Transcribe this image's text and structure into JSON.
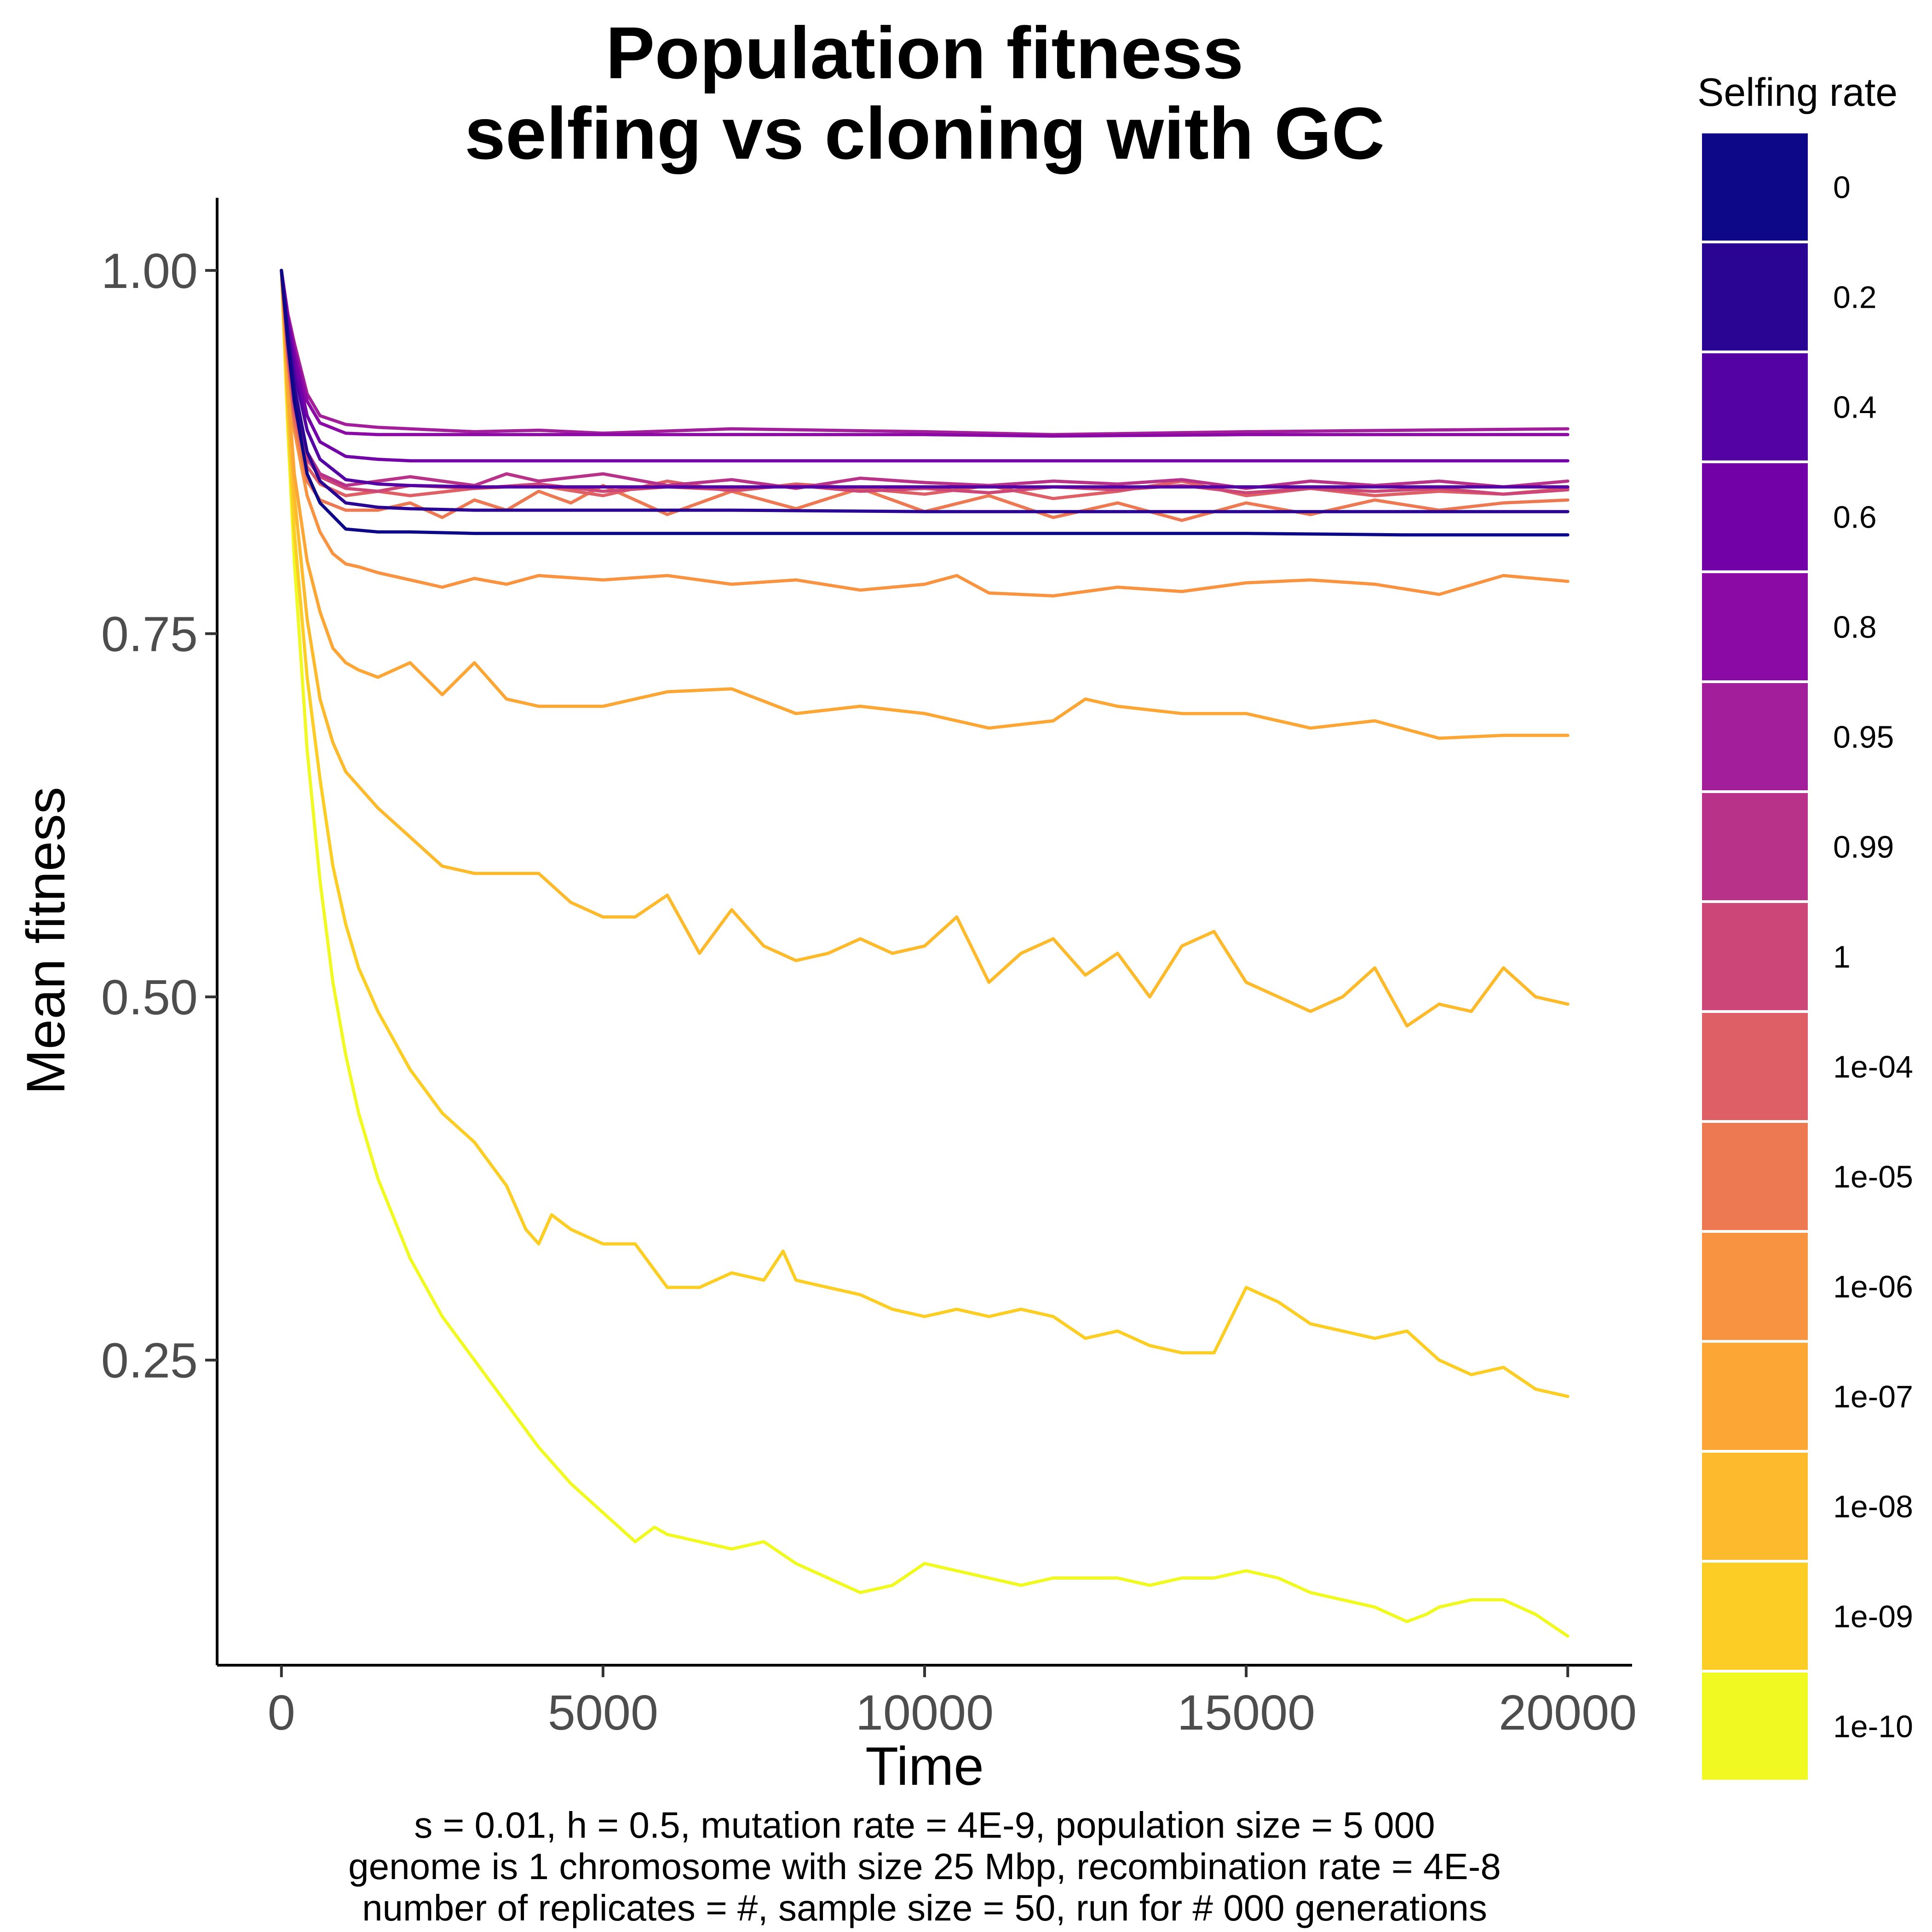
{
  "chart_data": {
    "type": "line",
    "title": [
      "Population fitness",
      "selfing vs cloning with GC"
    ],
    "xlabel": "Time",
    "ylabel": "Mean fitness",
    "xlim": [
      -1000,
      21000
    ],
    "ylim": [
      0.04,
      1.05
    ],
    "xticks": [
      0,
      5000,
      10000,
      15000,
      20000
    ],
    "xtick_labels": [
      "0",
      "5000",
      "10000",
      "15000",
      "20000"
    ],
    "yticks": [
      0.25,
      0.5,
      0.75,
      1.0
    ],
    "ytick_labels": [
      "0.25",
      "0.50",
      "0.75",
      "1.00"
    ],
    "grid": false,
    "legend": {
      "title": "Selfing rate",
      "position": "right"
    },
    "caption": [
      "s = 0.01, h = 0.5, mutation rate = 4E-9, population size = 5 000",
      "genome is 1 chromosome with size 25 Mbp, recombination rate = 4E-8",
      "number of replicates = #, sample size = 50, run for # 000 generations"
    ],
    "series": [
      {
        "name": "0",
        "color": "#0D0887",
        "x": [
          0,
          100,
          200,
          400,
          600,
          1000,
          1500,
          2000,
          3000,
          4000,
          5000,
          7000,
          10000,
          12000,
          15000,
          17500,
          20000
        ],
        "y": [
          1.0,
          0.95,
          0.91,
          0.86,
          0.84,
          0.822,
          0.82,
          0.82,
          0.819,
          0.819,
          0.819,
          0.819,
          0.819,
          0.819,
          0.819,
          0.818,
          0.818
        ]
      },
      {
        "name": "0.2",
        "color": "#2A0593",
        "x": [
          0,
          100,
          200,
          400,
          600,
          1000,
          1500,
          2000,
          3000,
          4000,
          5000,
          7000,
          10000,
          12000,
          15000,
          17500,
          20000
        ],
        "y": [
          1.0,
          0.955,
          0.92,
          0.875,
          0.855,
          0.84,
          0.837,
          0.836,
          0.835,
          0.835,
          0.835,
          0.835,
          0.834,
          0.834,
          0.834,
          0.834,
          0.834
        ]
      },
      {
        "name": "0.4",
        "color": "#5402A3",
        "x": [
          0,
          100,
          200,
          400,
          600,
          1000,
          1500,
          2000,
          3000,
          4000,
          5000,
          7000,
          10000,
          12000,
          15000,
          17500,
          20000
        ],
        "y": [
          1.0,
          0.96,
          0.93,
          0.89,
          0.87,
          0.856,
          0.853,
          0.852,
          0.851,
          0.851,
          0.851,
          0.851,
          0.851,
          0.851,
          0.851,
          0.851,
          0.851
        ]
      },
      {
        "name": "0.6",
        "color": "#7301A8",
        "x": [
          0,
          100,
          200,
          400,
          600,
          1000,
          1500,
          2000,
          3000,
          4000,
          5000,
          7000,
          10000,
          12000,
          15000,
          17500,
          20000
        ],
        "y": [
          1.0,
          0.965,
          0.94,
          0.9,
          0.882,
          0.872,
          0.87,
          0.869,
          0.869,
          0.869,
          0.869,
          0.869,
          0.869,
          0.869,
          0.869,
          0.869,
          0.869
        ]
      },
      {
        "name": "0.8",
        "color": "#8B0AA5",
        "x": [
          0,
          100,
          200,
          400,
          600,
          1000,
          1500,
          2000,
          3000,
          4000,
          5000,
          7000,
          10000,
          12000,
          15000,
          17500,
          20000
        ],
        "y": [
          1.0,
          0.968,
          0.945,
          0.91,
          0.895,
          0.888,
          0.887,
          0.887,
          0.887,
          0.887,
          0.887,
          0.887,
          0.887,
          0.886,
          0.887,
          0.887,
          0.887
        ]
      },
      {
        "name": "0.95",
        "color": "#A31E9A",
        "x": [
          0,
          100,
          200,
          400,
          600,
          1000,
          1500,
          2000,
          3000,
          4000,
          5000,
          7000,
          10000,
          12000,
          15000,
          17500,
          20000
        ],
        "y": [
          1.0,
          0.97,
          0.95,
          0.915,
          0.9,
          0.894,
          0.892,
          0.891,
          0.889,
          0.89,
          0.888,
          0.891,
          0.889,
          0.887,
          0.889,
          0.89,
          0.891
        ]
      },
      {
        "name": "0.99",
        "color": "#B83289",
        "x": [
          0,
          100,
          200,
          400,
          600,
          1000,
          1500,
          2000,
          3000,
          3500,
          4000,
          5000,
          6000,
          7000,
          8000,
          9000,
          10000,
          11000,
          12000,
          13000,
          14000,
          15000,
          16000,
          17000,
          18000,
          19000,
          20000
        ],
        "y": [
          1.0,
          0.95,
          0.91,
          0.875,
          0.86,
          0.852,
          0.855,
          0.858,
          0.852,
          0.86,
          0.855,
          0.86,
          0.852,
          0.856,
          0.85,
          0.857,
          0.854,
          0.852,
          0.855,
          0.853,
          0.856,
          0.85,
          0.855,
          0.852,
          0.855,
          0.851,
          0.855
        ]
      },
      {
        "name": "1",
        "color": "#CC4778",
        "x": [
          0,
          100,
          200,
          400,
          600,
          1000,
          1500,
          2000,
          3000,
          4000,
          5000,
          6000,
          7000,
          8000,
          9000,
          10000,
          11000,
          12000,
          13000,
          14000,
          15000,
          16000,
          17000,
          18000,
          19000,
          20000
        ],
        "y": [
          1.0,
          0.945,
          0.905,
          0.87,
          0.858,
          0.85,
          0.848,
          0.852,
          0.85,
          0.853,
          0.848,
          0.851,
          0.849,
          0.852,
          0.848,
          0.85,
          0.847,
          0.851,
          0.849,
          0.852,
          0.847,
          0.85,
          0.848,
          0.85,
          0.846,
          0.849
        ]
      },
      {
        "name": "1e-04",
        "color": "#DE5F65",
        "x": [
          0,
          100,
          200,
          400,
          600,
          1000,
          1500,
          2000,
          3000,
          4000,
          5000,
          6000,
          7000,
          8000,
          9000,
          10000,
          11000,
          12000,
          13000,
          14000,
          15000,
          16000,
          17000,
          18000,
          19000,
          20000
        ],
        "y": [
          1.0,
          0.94,
          0.9,
          0.865,
          0.853,
          0.845,
          0.848,
          0.845,
          0.85,
          0.852,
          0.845,
          0.855,
          0.848,
          0.853,
          0.85,
          0.846,
          0.852,
          0.843,
          0.848,
          0.855,
          0.845,
          0.85,
          0.845,
          0.848,
          0.846,
          0.85
        ]
      },
      {
        "name": "1e-05",
        "color": "#ED7953",
        "x": [
          0,
          100,
          200,
          400,
          600,
          1000,
          1500,
          2000,
          2500,
          3000,
          3500,
          4000,
          4500,
          5000,
          6000,
          7000,
          8000,
          9000,
          10000,
          11000,
          12000,
          13000,
          14000,
          15000,
          16000,
          17000,
          18000,
          19000,
          20000
        ],
        "y": [
          1.0,
          0.94,
          0.895,
          0.855,
          0.842,
          0.835,
          0.835,
          0.84,
          0.83,
          0.842,
          0.835,
          0.848,
          0.84,
          0.852,
          0.832,
          0.848,
          0.836,
          0.85,
          0.834,
          0.845,
          0.83,
          0.84,
          0.828,
          0.84,
          0.832,
          0.842,
          0.835,
          0.84,
          0.842
        ]
      },
      {
        "name": "1e-06",
        "color": "#F89441",
        "x": [
          0,
          100,
          200,
          400,
          600,
          800,
          1000,
          1200,
          1500,
          2000,
          2500,
          3000,
          3500,
          4000,
          5000,
          6000,
          7000,
          8000,
          9000,
          10000,
          10500,
          11000,
          12000,
          13000,
          14000,
          15000,
          16000,
          17000,
          18000,
          19000,
          20000
        ],
        "y": [
          1.0,
          0.935,
          0.89,
          0.845,
          0.82,
          0.805,
          0.798,
          0.796,
          0.792,
          0.787,
          0.782,
          0.788,
          0.784,
          0.79,
          0.787,
          0.79,
          0.784,
          0.787,
          0.78,
          0.784,
          0.79,
          0.778,
          0.776,
          0.782,
          0.779,
          0.785,
          0.787,
          0.784,
          0.777,
          0.79,
          0.786
        ]
      },
      {
        "name": "1e-07",
        "color": "#FCA636",
        "x": [
          0,
          100,
          200,
          400,
          600,
          800,
          1000,
          1200,
          1500,
          2000,
          2500,
          3000,
          3500,
          4000,
          5000,
          6000,
          7000,
          8000,
          9000,
          10000,
          11000,
          12000,
          12500,
          13000,
          14000,
          15000,
          16000,
          17000,
          18000,
          19000,
          20000
        ],
        "y": [
          1.0,
          0.92,
          0.86,
          0.8,
          0.765,
          0.74,
          0.73,
          0.725,
          0.72,
          0.73,
          0.708,
          0.73,
          0.705,
          0.7,
          0.7,
          0.71,
          0.712,
          0.695,
          0.7,
          0.695,
          0.685,
          0.69,
          0.705,
          0.7,
          0.695,
          0.695,
          0.685,
          0.69,
          0.678,
          0.68,
          0.68
        ]
      },
      {
        "name": "1e-08",
        "color": "#FDBA2C",
        "x": [
          0,
          100,
          200,
          400,
          600,
          800,
          1000,
          1200,
          1500,
          2000,
          2500,
          3000,
          3500,
          4000,
          4500,
          5000,
          5500,
          6000,
          6500,
          7000,
          7500,
          8000,
          8500,
          9000,
          9500,
          10000,
          10500,
          11000,
          11500,
          12000,
          12500,
          13000,
          13500,
          14000,
          14500,
          15000,
          15500,
          16000,
          16500,
          17000,
          17500,
          18000,
          18500,
          19000,
          19500,
          20000
        ],
        "y": [
          1.0,
          0.91,
          0.845,
          0.76,
          0.705,
          0.675,
          0.655,
          0.645,
          0.63,
          0.61,
          0.59,
          0.585,
          0.585,
          0.585,
          0.565,
          0.555,
          0.555,
          0.57,
          0.53,
          0.56,
          0.535,
          0.525,
          0.53,
          0.54,
          0.53,
          0.535,
          0.555,
          0.51,
          0.53,
          0.54,
          0.515,
          0.53,
          0.5,
          0.535,
          0.545,
          0.51,
          0.5,
          0.49,
          0.5,
          0.52,
          0.48,
          0.495,
          0.49,
          0.52,
          0.5,
          0.495
        ]
      },
      {
        "name": "1e-09",
        "color": "#FCCE25",
        "x": [
          0,
          100,
          200,
          400,
          600,
          800,
          1000,
          1200,
          1500,
          2000,
          2500,
          3000,
          3500,
          3800,
          4000,
          4200,
          4500,
          5000,
          5500,
          6000,
          6500,
          7000,
          7500,
          7800,
          8000,
          8500,
          9000,
          9500,
          10000,
          10500,
          11000,
          11500,
          12000,
          12500,
          13000,
          13500,
          14000,
          14500,
          15000,
          15500,
          16000,
          16500,
          17000,
          17500,
          18000,
          18500,
          19000,
          19500,
          20000
        ],
        "y": [
          1.0,
          0.9,
          0.82,
          0.72,
          0.65,
          0.59,
          0.55,
          0.52,
          0.49,
          0.45,
          0.42,
          0.4,
          0.37,
          0.34,
          0.33,
          0.35,
          0.34,
          0.33,
          0.33,
          0.3,
          0.3,
          0.31,
          0.305,
          0.325,
          0.305,
          0.3,
          0.295,
          0.285,
          0.28,
          0.285,
          0.28,
          0.285,
          0.28,
          0.265,
          0.27,
          0.26,
          0.255,
          0.255,
          0.3,
          0.29,
          0.275,
          0.27,
          0.265,
          0.27,
          0.25,
          0.24,
          0.245,
          0.23,
          0.225
        ]
      },
      {
        "name": "1e-10",
        "color": "#F0F921",
        "x": [
          0,
          100,
          200,
          400,
          600,
          800,
          1000,
          1200,
          1500,
          2000,
          2500,
          3000,
          3500,
          4000,
          4500,
          5000,
          5500,
          5800,
          6000,
          6500,
          7000,
          7500,
          8000,
          8500,
          9000,
          9500,
          10000,
          10500,
          11000,
          11500,
          12000,
          12500,
          13000,
          13500,
          14000,
          14500,
          15000,
          15500,
          16000,
          16500,
          17000,
          17500,
          17800,
          18000,
          18500,
          19000,
          19500,
          20000
        ],
        "y": [
          1.0,
          0.89,
          0.8,
          0.67,
          0.58,
          0.51,
          0.46,
          0.42,
          0.375,
          0.32,
          0.28,
          0.25,
          0.22,
          0.19,
          0.165,
          0.145,
          0.125,
          0.135,
          0.13,
          0.125,
          0.12,
          0.125,
          0.11,
          0.1,
          0.09,
          0.095,
          0.11,
          0.105,
          0.1,
          0.095,
          0.1,
          0.1,
          0.1,
          0.095,
          0.1,
          0.1,
          0.105,
          0.1,
          0.09,
          0.085,
          0.08,
          0.07,
          0.075,
          0.08,
          0.085,
          0.085,
          0.075,
          0.06
        ]
      }
    ]
  }
}
